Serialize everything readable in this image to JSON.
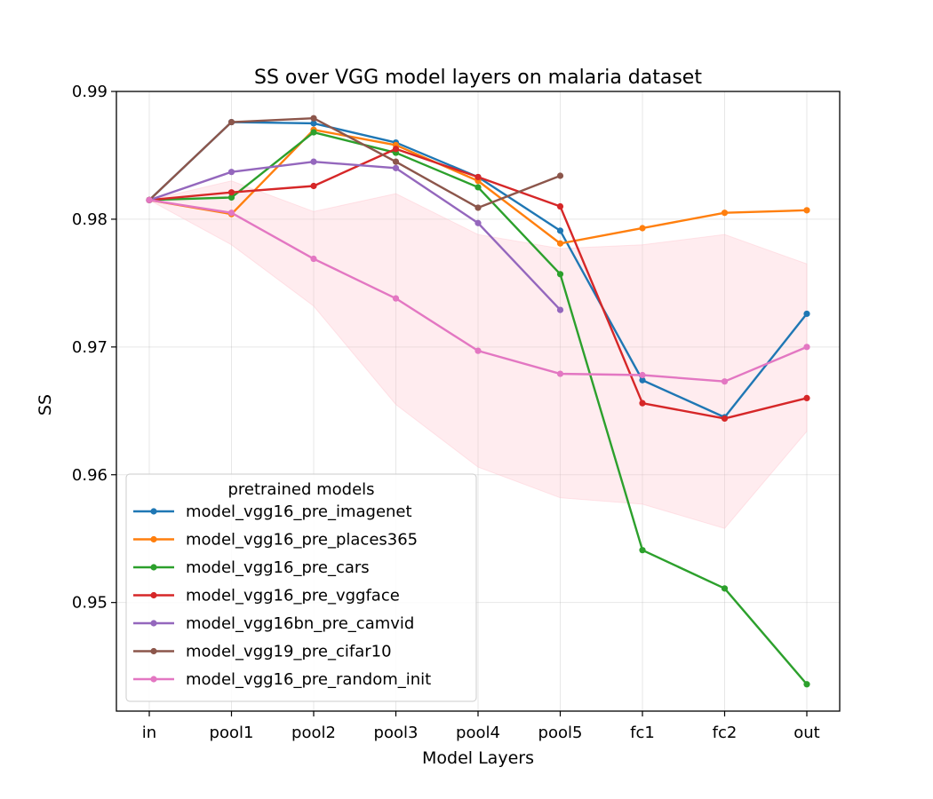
{
  "chart_data": {
    "type": "line",
    "title": "SS over VGG model layers on malaria dataset",
    "xlabel": "Model Layers",
    "ylabel": "SS",
    "categories": [
      "in",
      "pool1",
      "pool2",
      "pool3",
      "pool4",
      "pool5",
      "fc1",
      "fc2",
      "out"
    ],
    "ylim": [
      0.9415,
      0.99
    ],
    "yticks": [
      0.95,
      0.96,
      0.97,
      0.98,
      0.99
    ],
    "ytick_labels": [
      "0.95",
      "0.96",
      "0.97",
      "0.98",
      "0.99"
    ],
    "grid": true,
    "legend": {
      "title": "pretrained models",
      "placement": "lower-left"
    },
    "series": [
      {
        "name": "model_vgg16_pre_imagenet",
        "color": "#1f77b4",
        "values": [
          0.9815,
          0.9876,
          0.9875,
          0.986,
          0.9833,
          0.9791,
          0.9674,
          0.9645,
          0.9726
        ]
      },
      {
        "name": "model_vgg16_pre_places365",
        "color": "#ff7f0e",
        "values": [
          0.9815,
          0.9804,
          0.987,
          0.9858,
          0.983,
          0.9781,
          0.9793,
          0.9805,
          0.9807
        ]
      },
      {
        "name": "model_vgg16_pre_cars",
        "color": "#2ca02c",
        "values": [
          0.9815,
          0.9817,
          0.9868,
          0.9852,
          0.9825,
          0.9757,
          0.9541,
          0.9511,
          0.9436
        ]
      },
      {
        "name": "model_vgg16_pre_vggface",
        "color": "#d62728",
        "values": [
          0.9815,
          0.9821,
          0.9826,
          0.9855,
          0.9833,
          0.981,
          0.9656,
          0.9644,
          0.966
        ]
      },
      {
        "name": "model_vgg16bn_pre_camvid",
        "color": "#9467bd",
        "values": [
          0.9815,
          0.9837,
          0.9845,
          0.984,
          0.9797,
          0.9729,
          null,
          null,
          null
        ]
      },
      {
        "name": "model_vgg19_pre_cifar10",
        "color": "#8c564b",
        "values": [
          0.9815,
          0.9876,
          0.9879,
          0.9845,
          0.9809,
          0.9834,
          null,
          null,
          null
        ]
      },
      {
        "name": "model_vgg16_pre_random_init",
        "color": "#e377c2",
        "values": [
          0.9815,
          0.9805,
          0.9769,
          0.9738,
          0.9697,
          0.9679,
          0.9678,
          0.9673,
          0.97
        ],
        "band_upper": [
          0.9815,
          0.983,
          0.9806,
          0.982,
          0.9788,
          0.9777,
          0.978,
          0.9788,
          0.9765
        ],
        "band_lower": [
          0.9815,
          0.978,
          0.9732,
          0.9655,
          0.9606,
          0.9582,
          0.9577,
          0.9558,
          0.9634
        ]
      }
    ],
    "band_color": "#ffc0cb"
  }
}
